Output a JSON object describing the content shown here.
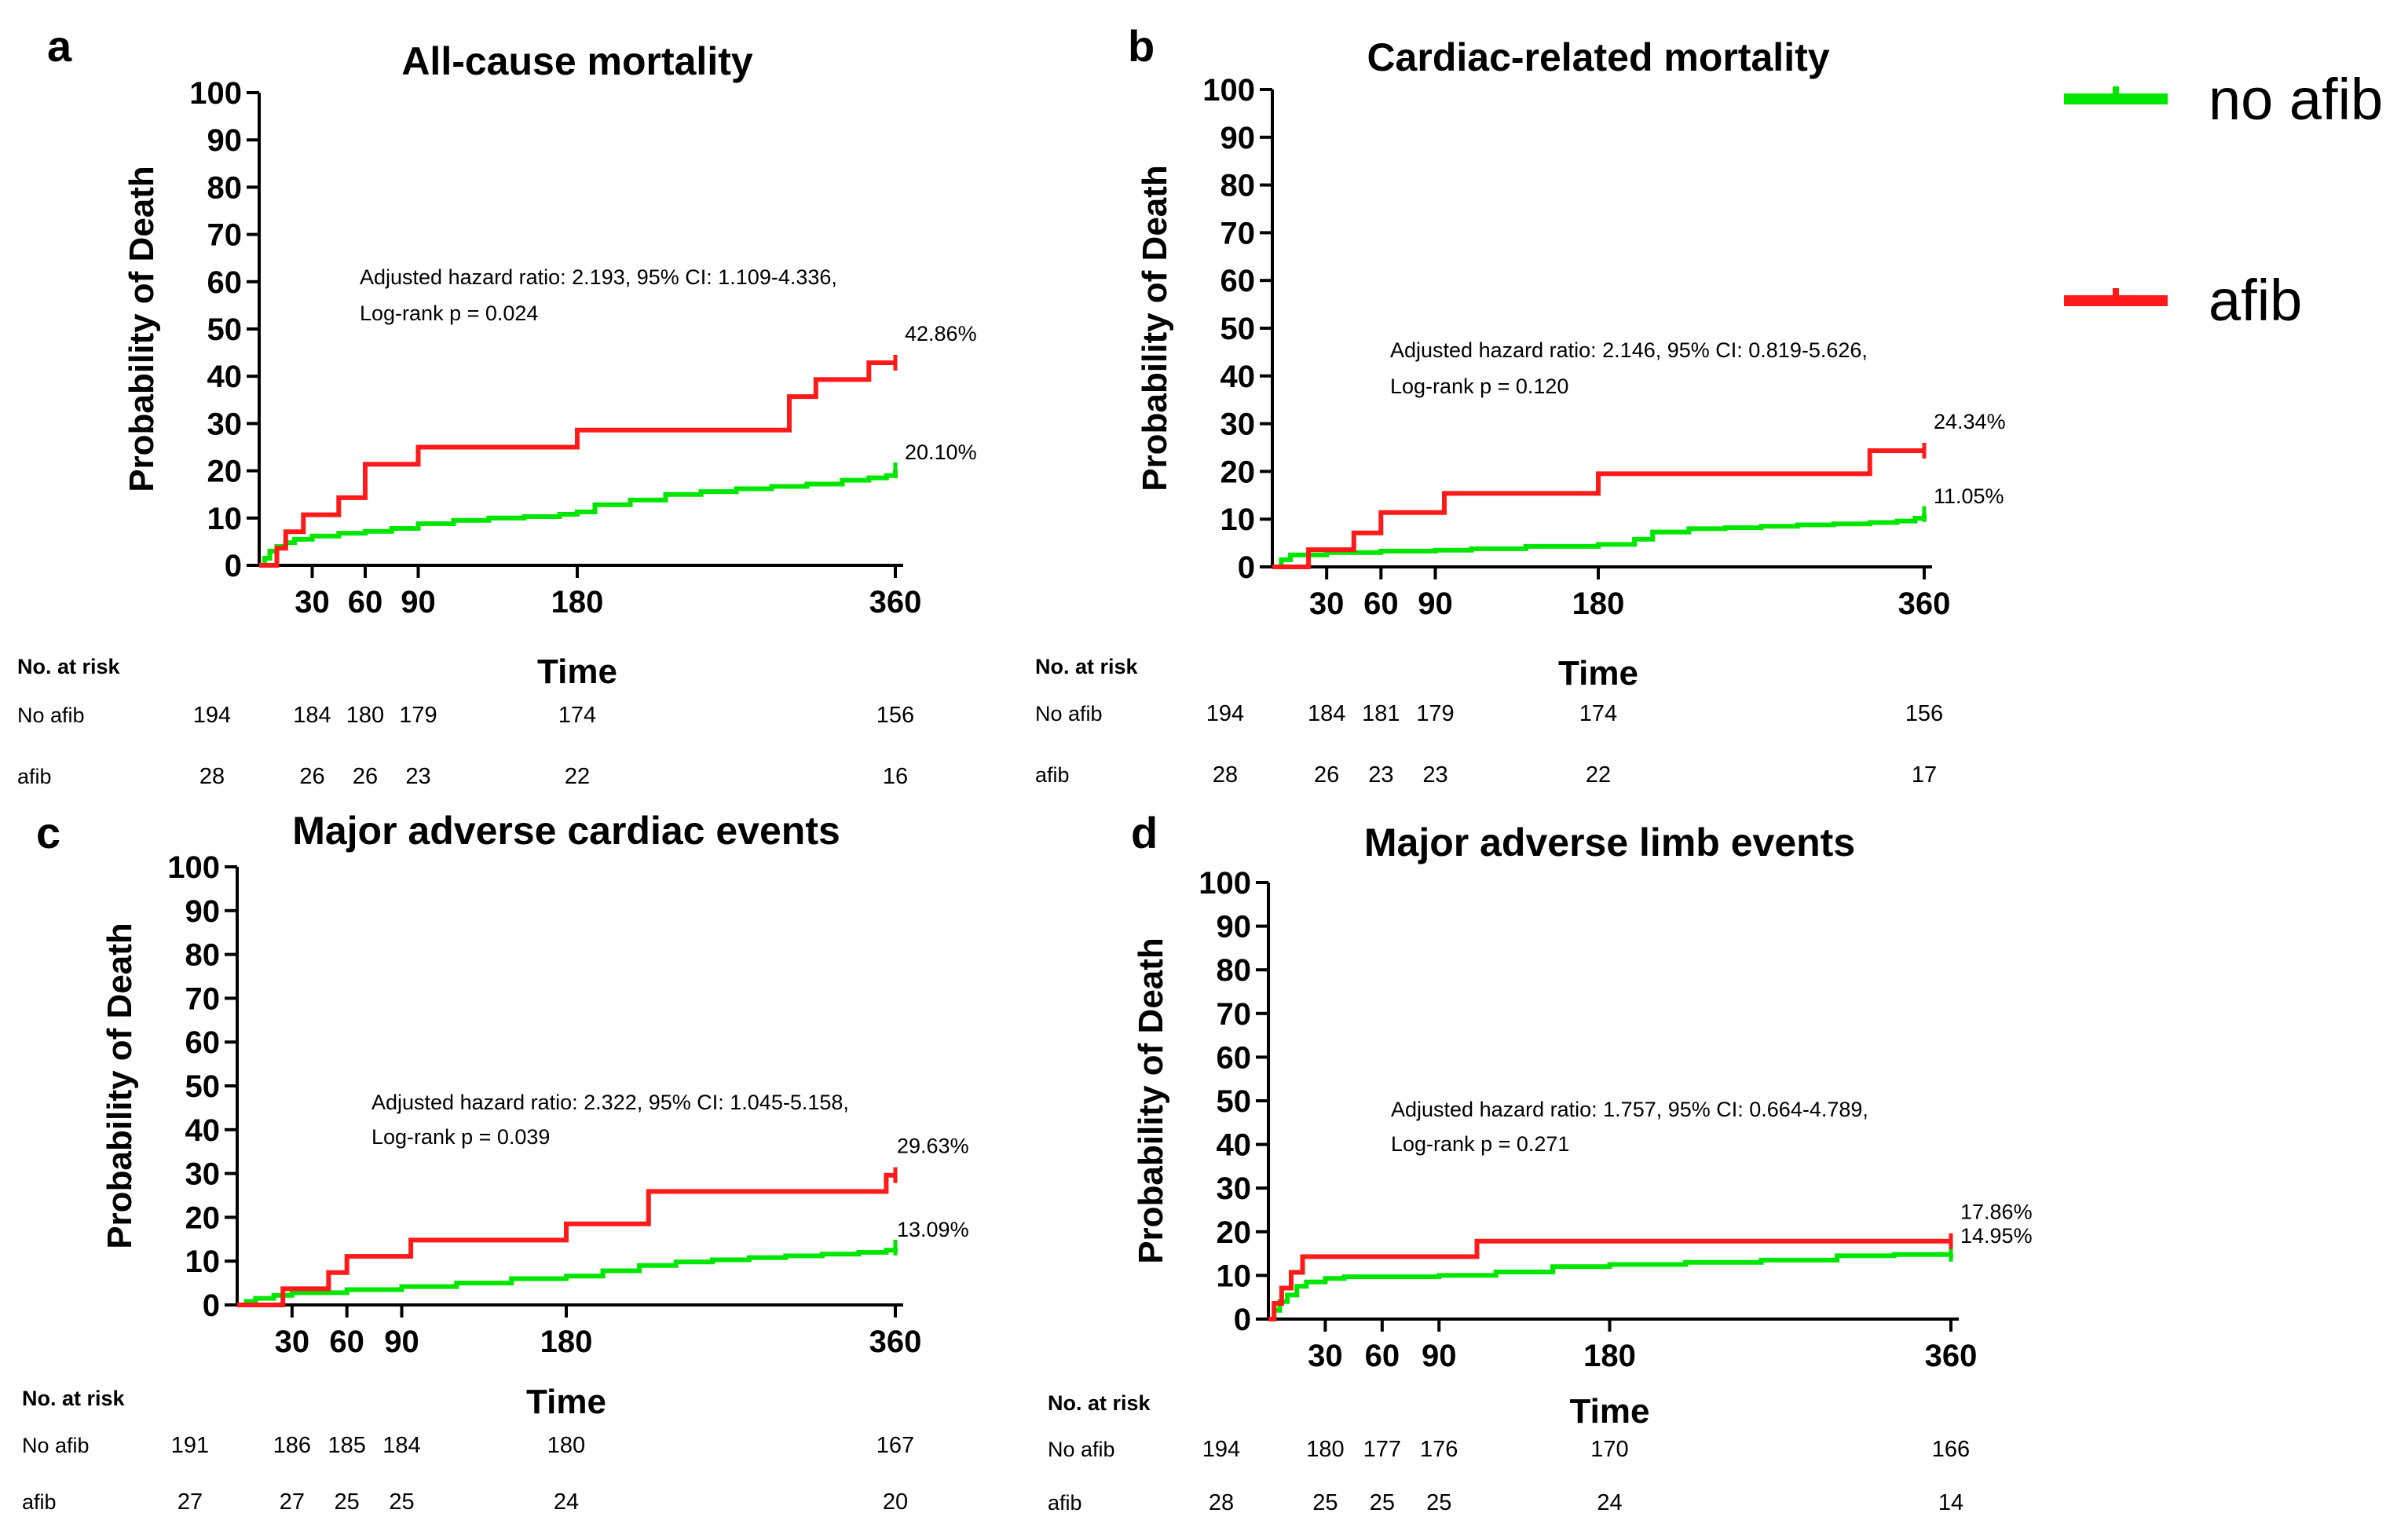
{
  "legend": {
    "entries": [
      {
        "label": "no afib",
        "color": "#00e600"
      },
      {
        "label": "afib",
        "color": "#ff1a1a"
      }
    ]
  },
  "colors": {
    "no_afib": "#00e600",
    "afib": "#ff1a1a",
    "axis": "#000000",
    "text": "#000000"
  },
  "risk_table_labels": {
    "header": "No. at risk",
    "row1": "No afib",
    "row2": "afib"
  },
  "chart_data": [
    {
      "panel": "a",
      "type": "line",
      "step": true,
      "title": "All-cause mortality",
      "xlabel": "Time",
      "ylabel": "Probability of Death",
      "xlim": [
        0,
        360
      ],
      "ylim": [
        0,
        100
      ],
      "xticks": [
        30,
        60,
        90,
        180,
        360
      ],
      "yticks": [
        0,
        10,
        20,
        30,
        40,
        50,
        60,
        70,
        80,
        90,
        100
      ],
      "annotation": [
        "Adjusted hazard ratio: 2.193, 95% CI: 1.109-4.336,",
        "Log-rank p = 0.024"
      ],
      "series": [
        {
          "name": "afib",
          "end_label": "42.86%",
          "x": [
            0,
            5,
            10,
            15,
            20,
            25,
            30,
            45,
            50,
            60,
            90,
            180,
            300,
            305,
            315,
            330,
            345,
            360
          ],
          "y": [
            0,
            0,
            3.6,
            7.1,
            7.1,
            10.7,
            10.7,
            14.3,
            14.3,
            21.4,
            25.0,
            28.6,
            35.7,
            35.7,
            39.3,
            39.3,
            42.86,
            42.86
          ]
        },
        {
          "name": "no afib",
          "end_label": "20.10%",
          "x": [
            0,
            3,
            6,
            10,
            15,
            20,
            30,
            45,
            60,
            75,
            90,
            110,
            130,
            150,
            170,
            180,
            190,
            210,
            230,
            250,
            270,
            290,
            310,
            330,
            345,
            355,
            360
          ],
          "y": [
            0,
            1.5,
            3.0,
            4.0,
            4.8,
            5.5,
            6.2,
            6.8,
            7.2,
            7.8,
            8.8,
            9.5,
            10.0,
            10.3,
            10.8,
            11.3,
            12.8,
            13.8,
            15.0,
            15.6,
            16.2,
            16.7,
            17.2,
            18.0,
            18.5,
            19.0,
            20.1
          ]
        }
      ],
      "risk_table": {
        "times": [
          0,
          30,
          60,
          90,
          180,
          360
        ],
        "no_afib": [
          194,
          184,
          180,
          179,
          174,
          156
        ],
        "afib": [
          28,
          26,
          26,
          23,
          22,
          16
        ]
      }
    },
    {
      "panel": "b",
      "type": "line",
      "step": true,
      "title": "Cardiac-related mortality",
      "xlabel": "Time",
      "ylabel": "Probability of Death",
      "xlim": [
        0,
        360
      ],
      "ylim": [
        0,
        100
      ],
      "xticks": [
        30,
        60,
        90,
        180,
        360
      ],
      "yticks": [
        0,
        10,
        20,
        30,
        40,
        50,
        60,
        70,
        80,
        90,
        100
      ],
      "annotation": [
        "Adjusted hazard ratio: 2.146, 95% CI: 0.819-5.626,",
        "Log-rank p = 0.120"
      ],
      "series": [
        {
          "name": "afib",
          "end_label": "24.34%",
          "x": [
            0,
            10,
            20,
            40,
            45,
            55,
            60,
            95,
            180,
            330,
            360
          ],
          "y": [
            0,
            0,
            3.6,
            3.6,
            7.1,
            7.1,
            11.4,
            15.4,
            19.5,
            24.34,
            24.34
          ]
        },
        {
          "name": "no afib",
          "end_label": "11.05%",
          "x": [
            0,
            5,
            10,
            30,
            60,
            90,
            110,
            140,
            180,
            200,
            210,
            230,
            250,
            270,
            290,
            310,
            330,
            345,
            355,
            360
          ],
          "y": [
            0,
            1.5,
            2.5,
            3.0,
            3.3,
            3.5,
            3.8,
            4.3,
            4.7,
            5.8,
            7.3,
            8.0,
            8.2,
            8.5,
            8.8,
            9.0,
            9.3,
            9.6,
            10.2,
            11.05
          ]
        }
      ],
      "risk_table": {
        "times": [
          0,
          30,
          60,
          90,
          180,
          360
        ],
        "no_afib": [
          194,
          184,
          181,
          179,
          174,
          156
        ],
        "afib": [
          28,
          26,
          23,
          23,
          22,
          17
        ]
      }
    },
    {
      "panel": "c",
      "type": "line",
      "step": true,
      "title": "Major adverse cardiac events",
      "xlabel": "Time",
      "ylabel": "Probability of Death",
      "xlim": [
        0,
        360
      ],
      "ylim": [
        0,
        100
      ],
      "xticks": [
        30,
        60,
        90,
        180,
        360
      ],
      "yticks": [
        0,
        10,
        20,
        30,
        40,
        50,
        60,
        70,
        80,
        90,
        100
      ],
      "annotation": [
        "Adjusted hazard ratio: 2.322, 95% CI: 1.045-5.158,",
        "Log-rank p = 0.039"
      ],
      "series": [
        {
          "name": "afib",
          "end_label": "29.63%",
          "x": [
            0,
            15,
            25,
            50,
            60,
            95,
            180,
            225,
            355,
            360
          ],
          "y": [
            0,
            0,
            3.7,
            7.4,
            11.1,
            14.8,
            18.5,
            25.9,
            29.63,
            29.63
          ]
        },
        {
          "name": "no afib",
          "end_label": "13.09%",
          "x": [
            0,
            5,
            10,
            20,
            30,
            60,
            90,
            120,
            150,
            180,
            200,
            220,
            240,
            260,
            280,
            300,
            320,
            340,
            355,
            360
          ],
          "y": [
            0,
            0.8,
            1.5,
            2.2,
            2.8,
            3.5,
            4.2,
            5.0,
            6.0,
            6.6,
            7.8,
            9.0,
            9.8,
            10.3,
            10.8,
            11.2,
            11.6,
            12.0,
            12.5,
            13.09
          ]
        }
      ],
      "risk_table": {
        "times": [
          0,
          30,
          60,
          90,
          180,
          360
        ],
        "no_afib": [
          191,
          186,
          185,
          184,
          180,
          167
        ],
        "afib": [
          27,
          27,
          25,
          25,
          24,
          20
        ]
      }
    },
    {
      "panel": "d",
      "type": "line",
      "step": true,
      "title": "Major adverse limb events",
      "xlabel": "Time",
      "ylabel": "Probability of Death",
      "xlim": [
        0,
        360
      ],
      "ylim": [
        0,
        100
      ],
      "xticks": [
        30,
        60,
        90,
        180,
        360
      ],
      "yticks": [
        0,
        10,
        20,
        30,
        40,
        50,
        60,
        70,
        80,
        90,
        100
      ],
      "annotation": [
        "Adjusted hazard ratio: 1.757, 95% CI: 0.664-4.789,",
        "Log-rank p = 0.271"
      ],
      "series": [
        {
          "name": "afib",
          "end_label": "17.86%",
          "x": [
            0,
            3,
            7,
            12,
            18,
            110,
            360
          ],
          "y": [
            0,
            3.6,
            7.1,
            10.7,
            14.3,
            17.86,
            17.86
          ]
        },
        {
          "name": "no afib",
          "end_label": "14.95%",
          "x": [
            0,
            3,
            6,
            10,
            15,
            20,
            30,
            40,
            90,
            120,
            150,
            180,
            220,
            260,
            300,
            330,
            360
          ],
          "y": [
            0,
            2.0,
            4.0,
            5.5,
            7.5,
            8.5,
            9.3,
            9.7,
            10.0,
            10.8,
            12.0,
            12.5,
            13.0,
            13.5,
            14.5,
            14.8,
            14.95
          ]
        }
      ],
      "risk_table": {
        "times": [
          0,
          30,
          60,
          90,
          180,
          360
        ],
        "no_afib": [
          194,
          180,
          177,
          176,
          170,
          166
        ],
        "afib": [
          28,
          25,
          25,
          25,
          24,
          14
        ]
      }
    }
  ]
}
